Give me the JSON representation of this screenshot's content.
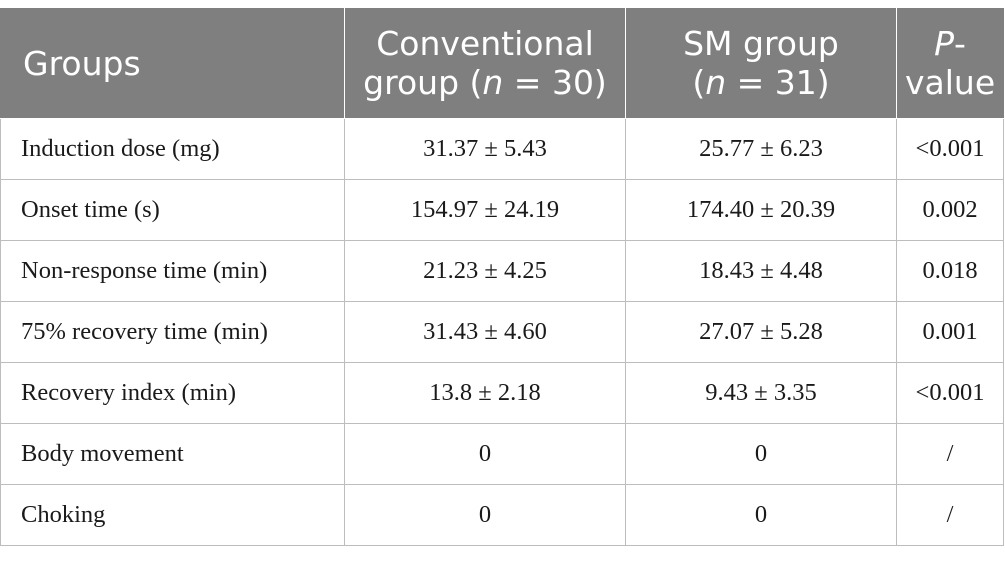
{
  "header": {
    "groups": "Groups",
    "conventional_line1": "Conventional",
    "conventional_line2_a": "group (",
    "conventional_line2_n": "n",
    "conventional_line2_b": " = 30)",
    "sm_line1": "SM group",
    "sm_line2_a": "(",
    "sm_line2_n": "n",
    "sm_line2_b": " = 31)",
    "p_line1_p": "P",
    "p_line1_dash": "-",
    "p_line2": "value"
  },
  "rows": [
    {
      "label": "Induction dose (mg)",
      "conventional": "31.37 ± 5.43",
      "sm": "25.77 ± 6.23",
      "p": "<0.001"
    },
    {
      "label": "Onset time (s)",
      "conventional": "154.97 ± 24.19",
      "sm": "174.40 ± 20.39",
      "p": "0.002"
    },
    {
      "label": "Non-response time (min)",
      "conventional": "21.23 ± 4.25",
      "sm": "18.43 ± 4.48",
      "p": "0.018"
    },
    {
      "label": "75% recovery time (min)",
      "conventional": "31.43 ± 4.60",
      "sm": "27.07 ± 5.28",
      "p": "0.001"
    },
    {
      "label": "Recovery index (min)",
      "conventional": "13.8 ± 2.18",
      "sm": "9.43 ± 3.35",
      "p": "<0.001"
    },
    {
      "label": "Body movement",
      "conventional": "0",
      "sm": "0",
      "p": "/"
    },
    {
      "label": "Choking",
      "conventional": "0",
      "sm": "0",
      "p": "/"
    }
  ]
}
